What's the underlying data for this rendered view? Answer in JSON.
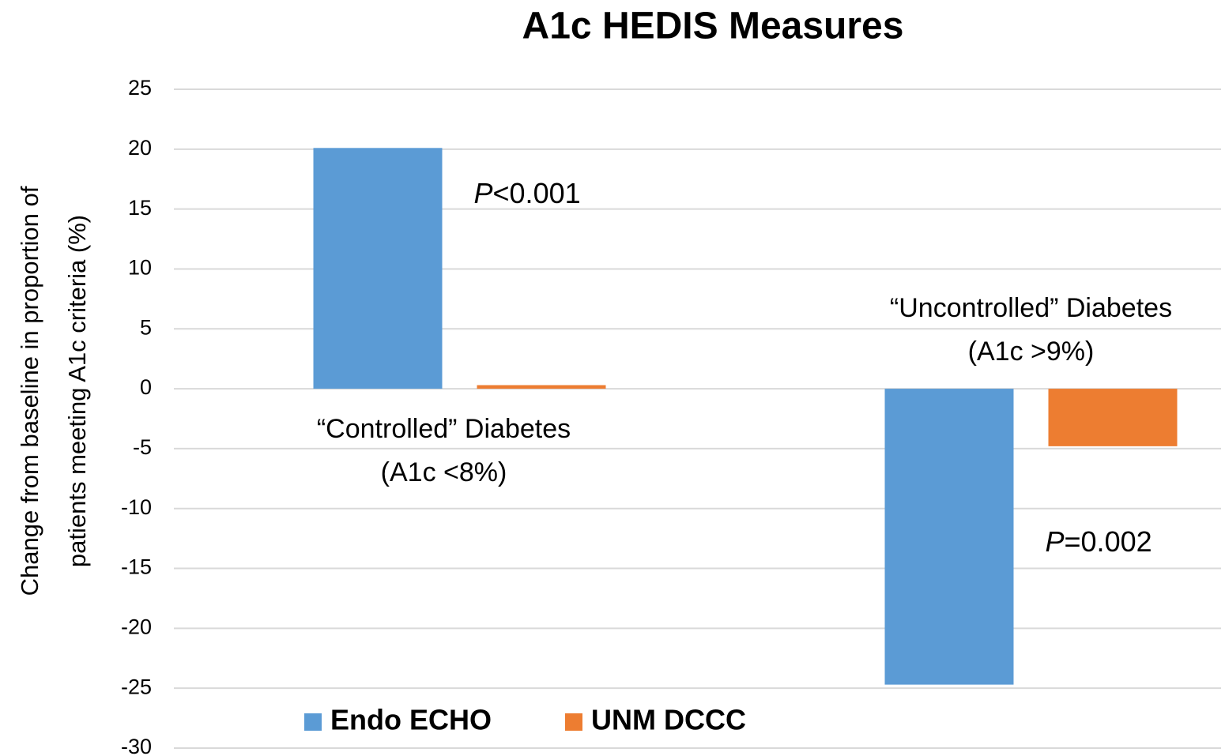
{
  "chart_data": {
    "type": "bar",
    "title": "A1c HEDIS Measures",
    "y_label": [
      "Change from baseline in proportion of",
      "patients meeting A1c criteria (%)"
    ],
    "categories": [
      [
        "“Controlled” Diabetes",
        "(A1c <8%)"
      ],
      [
        "“Uncontrolled” Diabetes",
        "(A1c >9%)"
      ]
    ],
    "series": [
      {
        "name": "Endo ECHO",
        "color": "#5b9bd5",
        "values": [
          20.1,
          -24.7
        ]
      },
      {
        "name": "UNM DCCC",
        "color": "#ed7d31",
        "values": [
          0.3,
          -4.8
        ]
      }
    ],
    "annotations": [
      [
        "P",
        "<0.001"
      ],
      [
        "P",
        "=0.002"
      ]
    ],
    "ylim": [
      -30,
      25
    ],
    "yticks": [
      -30,
      -25,
      -20,
      -15,
      -10,
      -5,
      0,
      5,
      10,
      15,
      20,
      25
    ],
    "grid": true,
    "legend": "bottom"
  }
}
